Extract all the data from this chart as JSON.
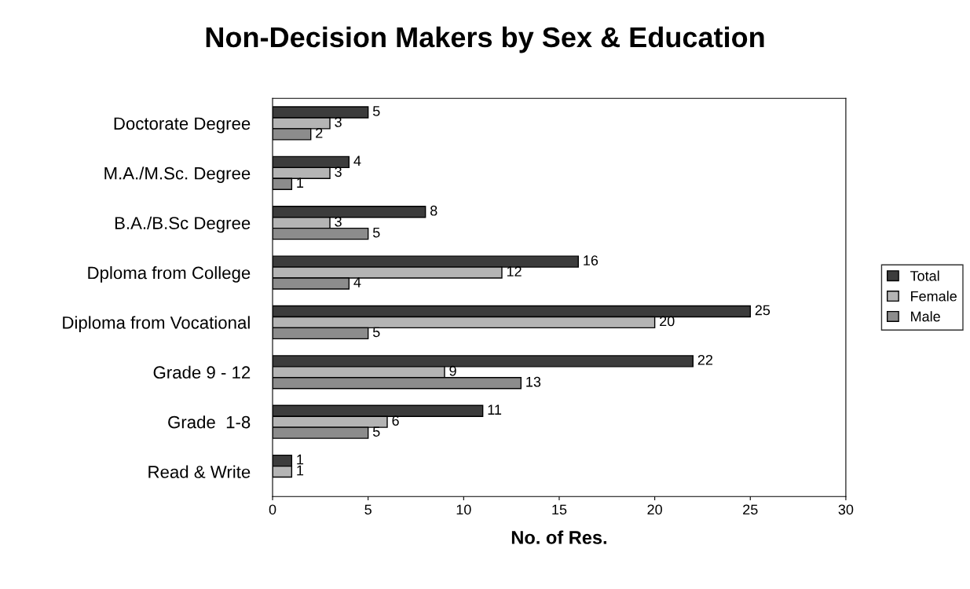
{
  "chart_data": {
    "type": "bar",
    "orientation": "horizontal",
    "title": "Non-Decision Makers by Sex & Education",
    "xlabel": "No. of Res.",
    "categories": [
      "Doctorate Degree",
      "M.A./M.Sc. Degree",
      "B.A./B.Sc Degree",
      "Dploma from College",
      "Diploma from Vocational",
      "Grade 9 - 12",
      "Grade  1-8",
      "Read & Write"
    ],
    "series": [
      {
        "name": "Total",
        "color": "#3c3c3c",
        "values": [
          5,
          4,
          8,
          16,
          25,
          22,
          11,
          1
        ]
      },
      {
        "name": "Female",
        "color": "#b4b4b4",
        "values": [
          3,
          3,
          3,
          12,
          20,
          9,
          6,
          1
        ]
      },
      {
        "name": "Male",
        "color": "#8c8c8c",
        "values": [
          2,
          1,
          5,
          4,
          5,
          13,
          5,
          null
        ]
      }
    ],
    "xlim": [
      0,
      30
    ],
    "xticks": [
      0,
      5,
      10,
      15,
      20,
      25,
      30
    ],
    "data_labels": true,
    "legend": "right",
    "grid": false
  }
}
